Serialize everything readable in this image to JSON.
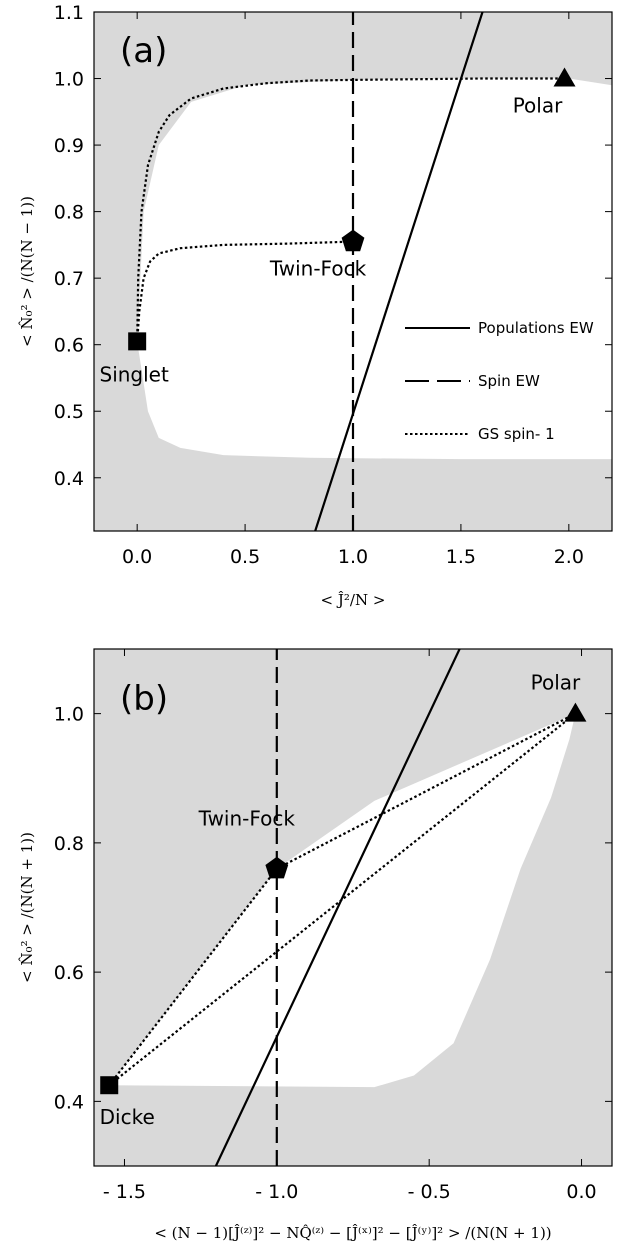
{
  "chart_data": [
    {
      "type": "line",
      "panel_label": "(a)",
      "xlabel": "< Ĵ²/N >",
      "ylabel": "< N̂₀² > /(N(N − 1))",
      "xlim": [
        -0.2,
        2.2
      ],
      "ylim": [
        0.32,
        1.1
      ],
      "xticks": [
        0.0,
        0.5,
        1.0,
        1.5,
        2.0
      ],
      "xtick_labels": [
        "0.0",
        "0.5",
        "1.0",
        "1.5",
        "2.0"
      ],
      "yticks": [
        0.4,
        0.5,
        0.6,
        0.7,
        0.8,
        0.9,
        1.0,
        1.1
      ],
      "ytick_labels": [
        "0.4",
        "0.5",
        "0.6",
        "0.7",
        "0.8",
        "0.9",
        "1.0",
        "1.1"
      ],
      "grid": false,
      "background_color": "#d9d9d9",
      "allowed_region_color": "#ffffff",
      "allowed_region": [
        [
          0.0,
          0.605
        ],
        [
          0.03,
          0.8
        ],
        [
          0.1,
          0.9
        ],
        [
          0.25,
          0.965
        ],
        [
          0.5,
          0.99
        ],
        [
          1.0,
          0.998
        ],
        [
          1.5,
          1.0
        ],
        [
          2.0,
          1.0
        ],
        [
          2.2,
          0.99
        ],
        [
          2.2,
          0.428
        ],
        [
          1.5,
          0.428
        ],
        [
          0.8,
          0.43
        ],
        [
          0.4,
          0.434
        ],
        [
          0.2,
          0.445
        ],
        [
          0.1,
          0.46
        ],
        [
          0.05,
          0.5
        ],
        [
          0.0,
          0.605
        ]
      ],
      "series": [
        {
          "style": "solid",
          "x": [
            0.825,
            1.6
          ],
          "y": [
            0.32,
            1.1
          ]
        },
        {
          "style": "dashed",
          "x": [
            1.0,
            1.0
          ],
          "y": [
            0.32,
            1.1
          ]
        },
        {
          "style": "dotted",
          "x": [
            0.0,
            0.005,
            0.02,
            0.05,
            0.1,
            0.15,
            0.25,
            0.4,
            0.6,
            0.8,
            1.0,
            1.3,
            1.6,
            2.0
          ],
          "y": [
            0.605,
            0.7,
            0.8,
            0.87,
            0.92,
            0.945,
            0.97,
            0.985,
            0.993,
            0.997,
            0.998,
            0.999,
            1.0,
            1.0
          ]
        },
        {
          "style": "dotted",
          "x": [
            0.0,
            0.01,
            0.03,
            0.06,
            0.1,
            0.2,
            0.4,
            0.7,
            1.0
          ],
          "y": [
            0.605,
            0.65,
            0.7,
            0.725,
            0.737,
            0.745,
            0.75,
            0.752,
            0.755
          ]
        }
      ],
      "legend": {
        "position": "right",
        "entries": [
          {
            "label": "Populations EW",
            "style": "solid"
          },
          {
            "label": "Spin EW",
            "style": "dashed"
          },
          {
            "label": "GS spin- 1",
            "style": "dotted"
          }
        ]
      },
      "markers": [
        {
          "label": "Polar",
          "shape": "triangle",
          "x": 1.98,
          "y": 1.0
        },
        {
          "label": "Twin-Fock",
          "shape": "pentagon",
          "x": 1.0,
          "y": 0.755
        },
        {
          "label": "Singlet",
          "shape": "square",
          "x": 0.0,
          "y": 0.605
        }
      ]
    },
    {
      "type": "line",
      "panel_label": "(b)",
      "xlabel": "< (N − 1)[Ĵ⁽ᶻ⁾]² − NQ̂⁽ᶻ⁾ − [Ĵ⁽ˣ⁾]² − [Ĵ⁽ʸ⁾]² > /(N(N + 1))",
      "ylabel": "< N̂₀² > /(N(N + 1))",
      "xlim": [
        -1.6,
        0.1
      ],
      "ylim": [
        0.3,
        1.1
      ],
      "xticks": [
        -1.5,
        -1.0,
        -0.5,
        0.0
      ],
      "xtick_labels": [
        "- 1.5",
        "- 1.0",
        "- 0.5",
        "0.0"
      ],
      "yticks": [
        0.4,
        0.6,
        0.8,
        1.0
      ],
      "ytick_labels": [
        "0.4",
        "0.6",
        "0.8",
        "1.0"
      ],
      "grid": false,
      "background_color": "#d9d9d9",
      "allowed_region_color": "#ffffff",
      "allowed_region": [
        [
          -1.55,
          0.425
        ],
        [
          -1.0,
          0.76
        ],
        [
          -0.68,
          0.865
        ],
        [
          -0.02,
          1.0
        ],
        [
          -0.04,
          0.96
        ],
        [
          -0.1,
          0.87
        ],
        [
          -0.2,
          0.76
        ],
        [
          -0.3,
          0.62
        ],
        [
          -0.42,
          0.49
        ],
        [
          -0.55,
          0.44
        ],
        [
          -0.68,
          0.422
        ],
        [
          -1.55,
          0.425
        ]
      ],
      "series": [
        {
          "style": "solid",
          "x": [
            -1.2,
            -0.4
          ],
          "y": [
            0.3,
            1.1
          ]
        },
        {
          "style": "dashed",
          "x": [
            -1.0,
            -1.0
          ],
          "y": [
            0.3,
            1.1
          ]
        },
        {
          "style": "dotted",
          "x": [
            -1.55,
            -1.0
          ],
          "y": [
            0.425,
            0.76
          ]
        },
        {
          "style": "dotted",
          "x": [
            -1.0,
            -0.02
          ],
          "y": [
            0.76,
            1.0
          ]
        },
        {
          "style": "dotted",
          "x": [
            -1.55,
            -0.02
          ],
          "y": [
            0.425,
            1.0
          ]
        }
      ],
      "markers": [
        {
          "label": "Polar",
          "shape": "triangle",
          "x": -0.02,
          "y": 1.0
        },
        {
          "label": "Twin-Fock",
          "shape": "pentagon",
          "x": -1.0,
          "y": 0.76
        },
        {
          "label": "Dicke",
          "shape": "square",
          "x": -1.55,
          "y": 0.425
        }
      ]
    }
  ]
}
